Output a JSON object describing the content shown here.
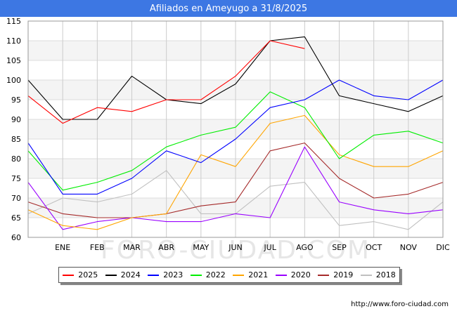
{
  "title": "Afiliados en Ameyugo a 31/8/2025",
  "watermark": "FORO-CIUDAD.COM",
  "source": "http://www.foro-ciudad.com",
  "chart_data": {
    "type": "line",
    "categories": [
      "",
      "ENE",
      "FEB",
      "MAR",
      "ABR",
      "MAY",
      "JUN",
      "JUL",
      "AGO",
      "SEP",
      "OCT",
      "NOV",
      "DIC"
    ],
    "ylim": [
      60,
      115
    ],
    "yticks": [
      60,
      65,
      70,
      75,
      80,
      85,
      90,
      95,
      100,
      105,
      110,
      115
    ],
    "grid": true,
    "legend_position": "bottom",
    "series": [
      {
        "name": "2025",
        "color": "#ff0000",
        "values": [
          96,
          89,
          93,
          92,
          95,
          95,
          101,
          110,
          108,
          null,
          null,
          null,
          null
        ]
      },
      {
        "name": "2024",
        "color": "#000000",
        "values": [
          100,
          90,
          90,
          101,
          95,
          94,
          99,
          110,
          111,
          96,
          94,
          92,
          96
        ]
      },
      {
        "name": "2023",
        "color": "#0000ff",
        "values": [
          84,
          71,
          71,
          75,
          82,
          79,
          85,
          93,
          95,
          100,
          96,
          95,
          100
        ]
      },
      {
        "name": "2022",
        "color": "#00ee00",
        "values": [
          82,
          72,
          74,
          77,
          83,
          86,
          88,
          97,
          93,
          80,
          86,
          87,
          84
        ]
      },
      {
        "name": "2021",
        "color": "#ffa500",
        "values": [
          67,
          63,
          62,
          65,
          66,
          81,
          78,
          89,
          91,
          81,
          78,
          78,
          82
        ]
      },
      {
        "name": "2020",
        "color": "#9900ff",
        "values": [
          74,
          62,
          64,
          65,
          64,
          64,
          66,
          65,
          83,
          69,
          67,
          66,
          67
        ]
      },
      {
        "name": "2019",
        "color": "#a52a2a",
        "values": [
          69,
          66,
          65,
          65,
          66,
          68,
          69,
          82,
          84,
          75,
          70,
          71,
          74
        ]
      },
      {
        "name": "2018",
        "color": "#c0c0c0",
        "values": [
          66,
          70,
          69,
          71,
          77,
          66,
          66,
          73,
          74,
          63,
          64,
          62,
          69
        ]
      }
    ]
  }
}
